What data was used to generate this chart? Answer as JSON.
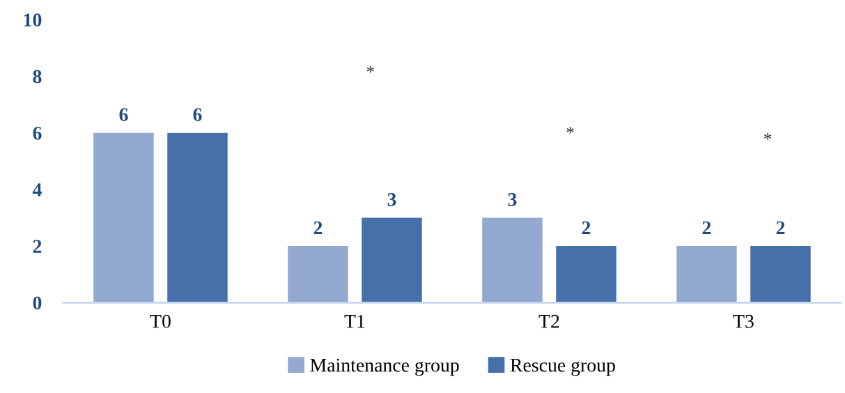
{
  "chart_data": {
    "type": "bar",
    "categories": [
      "T0",
      "T1",
      "T2",
      "T3"
    ],
    "series": [
      {
        "name": "Maintenance group",
        "color": "#93a9d0",
        "values": [
          6,
          2,
          3,
          2
        ]
      },
      {
        "name": "Rescue group",
        "color": "#4770aa",
        "values": [
          6,
          3,
          2,
          2
        ]
      }
    ],
    "ylim": [
      0,
      10
    ],
    "yticks": [
      0,
      2,
      4,
      6,
      8,
      10
    ],
    "data_labels": true,
    "grid": false,
    "legend": "bottom",
    "annotations": [
      "*",
      "*",
      "*"
    ]
  }
}
